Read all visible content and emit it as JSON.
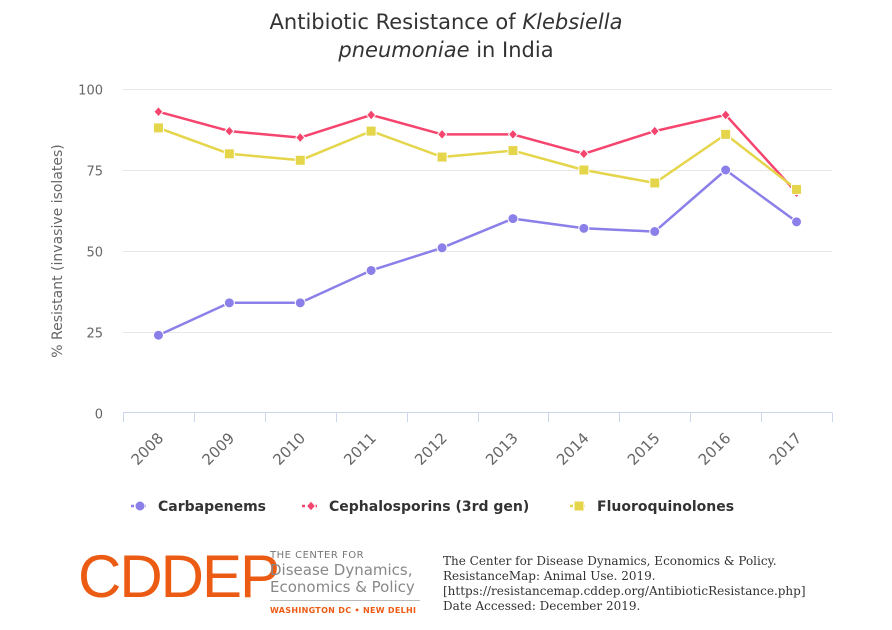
{
  "chart_data": {
    "type": "line",
    "title_parts": [
      {
        "text": "Antibiotic Resistance of ",
        "italic": false
      },
      {
        "text": "Klebsiella",
        "italic": true
      },
      {
        "text": "pneumoniae",
        "italic": true,
        "newline": true
      },
      {
        "text": " in India",
        "italic": false
      }
    ],
    "title": "Antibiotic Resistance of Klebsiella pneumoniae in India",
    "xlabel": "",
    "ylabel": "% Resistant (invasive isolates)",
    "categories": [
      "2008",
      "2009",
      "2010",
      "2011",
      "2012",
      "2013",
      "2014",
      "2015",
      "2016",
      "2017"
    ],
    "ylim": [
      0,
      100
    ],
    "yticks": [
      "0",
      "25",
      "50",
      "75",
      "100"
    ],
    "grid": true,
    "legend_position": "bottom-center",
    "series": [
      {
        "name": "Carbapenems",
        "marker": "circle",
        "color": "#8b80e9",
        "values": [
          24,
          34,
          34,
          44,
          51,
          60,
          57,
          56,
          75,
          59
        ]
      },
      {
        "name": "Cephalosporins (3rd gen)",
        "marker": "diamond",
        "color": "#f5456f",
        "values": [
          93,
          87,
          85,
          92,
          86,
          86,
          80,
          87,
          92,
          68
        ]
      },
      {
        "name": "Fluoroquinolones",
        "marker": "square",
        "color": "#e4d54b",
        "values": [
          88,
          80,
          78,
          87,
          79,
          81,
          75,
          71,
          86,
          69
        ]
      }
    ]
  },
  "logo": {
    "mark": "CDDEP",
    "line1": "THE CENTER FOR",
    "line2": "Disease Dynamics,",
    "line3": "Economics & Policy",
    "locations": "WASHINGTON DC • NEW DELHI"
  },
  "citation": {
    "line1": "The Center for Disease Dynamics, Economics & Policy.",
    "line2": "ResistanceMap: Animal Use. 2019.",
    "line3": "[https://resistancemap.cddep.org/AntibioticResistance.php]",
    "line4": "Date Accessed: December 2019."
  }
}
